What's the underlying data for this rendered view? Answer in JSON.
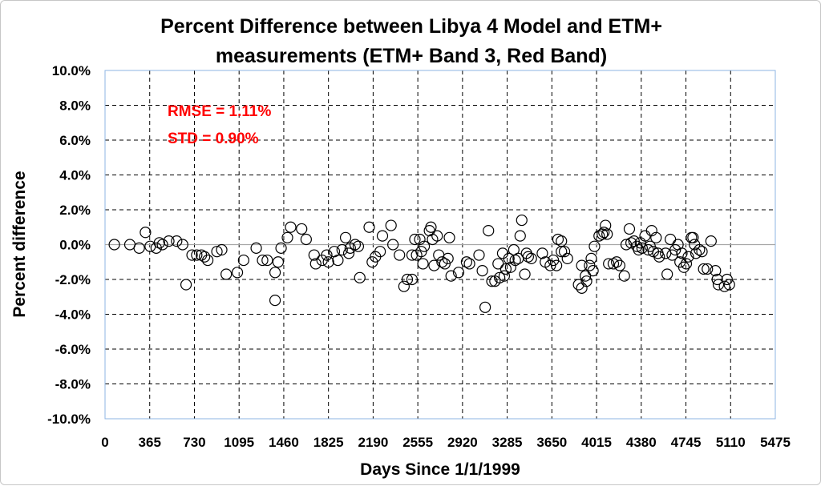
{
  "chart_data": {
    "type": "scatter",
    "title_line1": "Percent Difference between Libya 4 Model and ETM+",
    "title_line2": "measurements (ETM+ Band 3, Red Band)",
    "xlabel": "Days Since 1/1/1999",
    "ylabel": "Percent difference",
    "xlim": [
      0,
      5475
    ],
    "ylim": [
      -10,
      10
    ],
    "x_ticks": [
      0,
      365,
      730,
      1095,
      1460,
      1825,
      2190,
      2555,
      2920,
      3285,
      3650,
      4015,
      4380,
      4745,
      5110,
      5475
    ],
    "y_ticks": [
      -10,
      -8,
      -6,
      -4,
      -2,
      0,
      2,
      4,
      6,
      8,
      10
    ],
    "y_tick_labels": [
      "-10.0%",
      "-8.0%",
      "-6.0%",
      "-4.0%",
      "-2.0%",
      "0.0%",
      "2.0%",
      "4.0%",
      "6.0%",
      "8.0%",
      "10.0%"
    ],
    "grid": true,
    "annotations": [
      {
        "text": "RMSE = 1.11%",
        "color": "#ff0000"
      },
      {
        "text": "STD = 0.90%",
        "color": "#ff0000"
      }
    ],
    "marker": "open-circle",
    "marker_color": "#000000",
    "points": [
      [
        76,
        0.0
      ],
      [
        203,
        0.0
      ],
      [
        279,
        -0.2
      ],
      [
        330,
        0.7
      ],
      [
        369,
        -0.1
      ],
      [
        418,
        -0.2
      ],
      [
        444,
        0.1
      ],
      [
        469,
        0.0
      ],
      [
        521,
        0.2
      ],
      [
        585,
        0.2
      ],
      [
        634,
        0.0
      ],
      [
        662,
        -2.3
      ],
      [
        711,
        -0.6
      ],
      [
        749,
        -0.6
      ],
      [
        787,
        -0.6
      ],
      [
        813,
        -0.7
      ],
      [
        839,
        -0.9
      ],
      [
        914,
        -0.4
      ],
      [
        953,
        -0.3
      ],
      [
        990,
        -1.7
      ],
      [
        1081,
        -1.6
      ],
      [
        1132,
        -0.9
      ],
      [
        1235,
        -0.2
      ],
      [
        1287,
        -0.9
      ],
      [
        1325,
        -0.9
      ],
      [
        1389,
        -3.2
      ],
      [
        1389,
        -1.6
      ],
      [
        1414,
        -1.0
      ],
      [
        1438,
        -0.2
      ],
      [
        1490,
        0.4
      ],
      [
        1516,
        1.0
      ],
      [
        1606,
        0.9
      ],
      [
        1643,
        0.3
      ],
      [
        1708,
        -0.6
      ],
      [
        1721,
        -1.1
      ],
      [
        1773,
        -0.9
      ],
      [
        1811,
        -0.6
      ],
      [
        1825,
        -1.0
      ],
      [
        1873,
        -0.4
      ],
      [
        1902,
        -0.9
      ],
      [
        1937,
        -0.3
      ],
      [
        1965,
        0.4
      ],
      [
        1991,
        -0.5
      ],
      [
        2003,
        -0.2
      ],
      [
        2043,
        0.0
      ],
      [
        2069,
        -0.1
      ],
      [
        2081,
        -1.9
      ],
      [
        2158,
        1.0
      ],
      [
        2183,
        -1.0
      ],
      [
        2209,
        -0.7
      ],
      [
        2247,
        -0.4
      ],
      [
        2266,
        0.5
      ],
      [
        2336,
        1.1
      ],
      [
        2352,
        0.0
      ],
      [
        2405,
        -0.6
      ],
      [
        2442,
        -2.4
      ],
      [
        2469,
        -2.0
      ],
      [
        2508,
        -2.0
      ],
      [
        2508,
        -0.6
      ],
      [
        2531,
        0.3
      ],
      [
        2545,
        -0.6
      ],
      [
        2571,
        0.3
      ],
      [
        2583,
        -0.4
      ],
      [
        2597,
        -1.1
      ],
      [
        2607,
        -0.1
      ],
      [
        2650,
        0.8
      ],
      [
        2662,
        1.0
      ],
      [
        2675,
        0.3
      ],
      [
        2688,
        -1.2
      ],
      [
        2713,
        0.5
      ],
      [
        2726,
        -0.6
      ],
      [
        2753,
        -1.0
      ],
      [
        2776,
        -1.1
      ],
      [
        2801,
        -0.8
      ],
      [
        2813,
        0.4
      ],
      [
        2827,
        -1.8
      ],
      [
        2888,
        -1.6
      ],
      [
        2953,
        -1.0
      ],
      [
        2977,
        -1.1
      ],
      [
        3055,
        -0.6
      ],
      [
        3082,
        -1.5
      ],
      [
        3105,
        -3.6
      ],
      [
        3132,
        0.8
      ],
      [
        3160,
        -2.1
      ],
      [
        3185,
        -2.1
      ],
      [
        3211,
        -1.1
      ],
      [
        3223,
        -1.9
      ],
      [
        3248,
        -0.5
      ],
      [
        3261,
        -1.8
      ],
      [
        3274,
        -1.4
      ],
      [
        3299,
        -0.8
      ],
      [
        3313,
        -1.3
      ],
      [
        3339,
        -0.3
      ],
      [
        3351,
        -0.9
      ],
      [
        3375,
        -0.8
      ],
      [
        3391,
        0.5
      ],
      [
        3404,
        1.4
      ],
      [
        3429,
        -1.7
      ],
      [
        3443,
        -0.5
      ],
      [
        3457,
        -0.7
      ],
      [
        3482,
        -0.8
      ],
      [
        3572,
        -0.5
      ],
      [
        3597,
        -1.0
      ],
      [
        3637,
        -1.2
      ],
      [
        3662,
        -0.9
      ],
      [
        3688,
        -1.2
      ],
      [
        3700,
        0.3
      ],
      [
        3728,
        0.2
      ],
      [
        3728,
        -0.4
      ],
      [
        3753,
        -0.4
      ],
      [
        3777,
        -0.8
      ],
      [
        3868,
        -2.3
      ],
      [
        3894,
        -2.5
      ],
      [
        3894,
        -1.2
      ],
      [
        3924,
        -1.8
      ],
      [
        3933,
        -2.1
      ],
      [
        3958,
        -1.2
      ],
      [
        3972,
        -0.8
      ],
      [
        3986,
        -1.5
      ],
      [
        3998,
        -0.1
      ],
      [
        4036,
        0.5
      ],
      [
        4062,
        0.6
      ],
      [
        4075,
        0.7
      ],
      [
        4088,
        1.1
      ],
      [
        4101,
        0.6
      ],
      [
        4114,
        -1.1
      ],
      [
        4152,
        -1.1
      ],
      [
        4179,
        -1.0
      ],
      [
        4204,
        -1.2
      ],
      [
        4242,
        -1.8
      ],
      [
        4257,
        0.0
      ],
      [
        4283,
        0.9
      ],
      [
        4297,
        0.1
      ],
      [
        4321,
        0.2
      ],
      [
        4345,
        -0.1
      ],
      [
        4359,
        -0.3
      ],
      [
        4373,
        0.1
      ],
      [
        4387,
        -0.2
      ],
      [
        4411,
        0.5
      ],
      [
        4437,
        -0.3
      ],
      [
        4452,
        -0.1
      ],
      [
        4465,
        0.8
      ],
      [
        4479,
        -0.4
      ],
      [
        4501,
        0.4
      ],
      [
        4516,
        -0.5
      ],
      [
        4527,
        -0.7
      ],
      [
        4579,
        -0.5
      ],
      [
        4592,
        -1.7
      ],
      [
        4618,
        0.3
      ],
      [
        4633,
        -0.6
      ],
      [
        4658,
        -0.3
      ],
      [
        4680,
        0.0
      ],
      [
        4697,
        -1.0
      ],
      [
        4712,
        -0.5
      ],
      [
        4728,
        -1.3
      ],
      [
        4748,
        -1.1
      ],
      [
        4764,
        -0.7
      ],
      [
        4790,
        0.4
      ],
      [
        4803,
        0.4
      ],
      [
        4815,
        0.0
      ],
      [
        4827,
        -0.5
      ],
      [
        4855,
        -0.3
      ],
      [
        4876,
        -0.4
      ],
      [
        4890,
        -1.4
      ],
      [
        4920,
        -1.4
      ],
      [
        4950,
        0.2
      ],
      [
        4986,
        -1.5
      ],
      [
        5001,
        -2.0
      ],
      [
        5010,
        -2.3
      ],
      [
        5060,
        -2.4
      ],
      [
        5081,
        -2.0
      ],
      [
        5100,
        -2.3
      ]
    ]
  }
}
